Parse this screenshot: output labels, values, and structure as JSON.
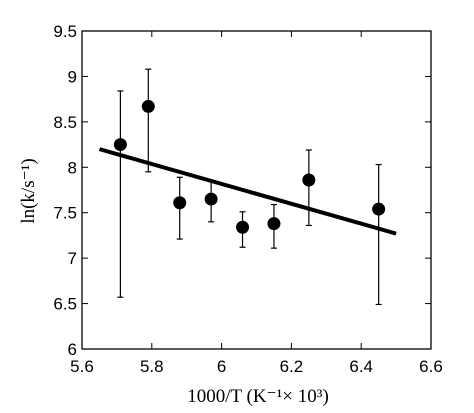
{
  "chart_data": {
    "type": "scatter",
    "xlabel": "1000/T (K⁻¹× 10³)",
    "ylabel": "ln(k/s⁻¹)",
    "xlim": [
      5.6,
      6.6
    ],
    "ylim": [
      6,
      9.5
    ],
    "x_ticks": [
      "5.6",
      "5.8",
      "6",
      "6.2",
      "6.4",
      "6.6"
    ],
    "y_ticks": [
      "6",
      "6.5",
      "7",
      "7.5",
      "8",
      "8.5",
      "9",
      "9.5"
    ],
    "grid": false,
    "points": [
      {
        "x": 5.71,
        "y": 8.25,
        "err_low": 6.57,
        "err_high": 8.84
      },
      {
        "x": 5.79,
        "y": 8.67,
        "err_low": 7.95,
        "err_high": 9.08
      },
      {
        "x": 5.88,
        "y": 7.61,
        "err_low": 7.21,
        "err_high": 7.89
      },
      {
        "x": 5.97,
        "y": 7.65,
        "err_low": 7.4,
        "err_high": 7.85
      },
      {
        "x": 6.06,
        "y": 7.34,
        "err_low": 7.12,
        "err_high": 7.51
      },
      {
        "x": 6.15,
        "y": 7.38,
        "err_low": 7.11,
        "err_high": 7.59
      },
      {
        "x": 6.25,
        "y": 7.86,
        "err_low": 7.36,
        "err_high": 8.19
      },
      {
        "x": 6.45,
        "y": 7.54,
        "err_low": 6.49,
        "err_high": 8.03
      }
    ],
    "fit_line": {
      "x": [
        5.65,
        6.5
      ],
      "y": [
        8.2,
        7.27
      ]
    }
  }
}
